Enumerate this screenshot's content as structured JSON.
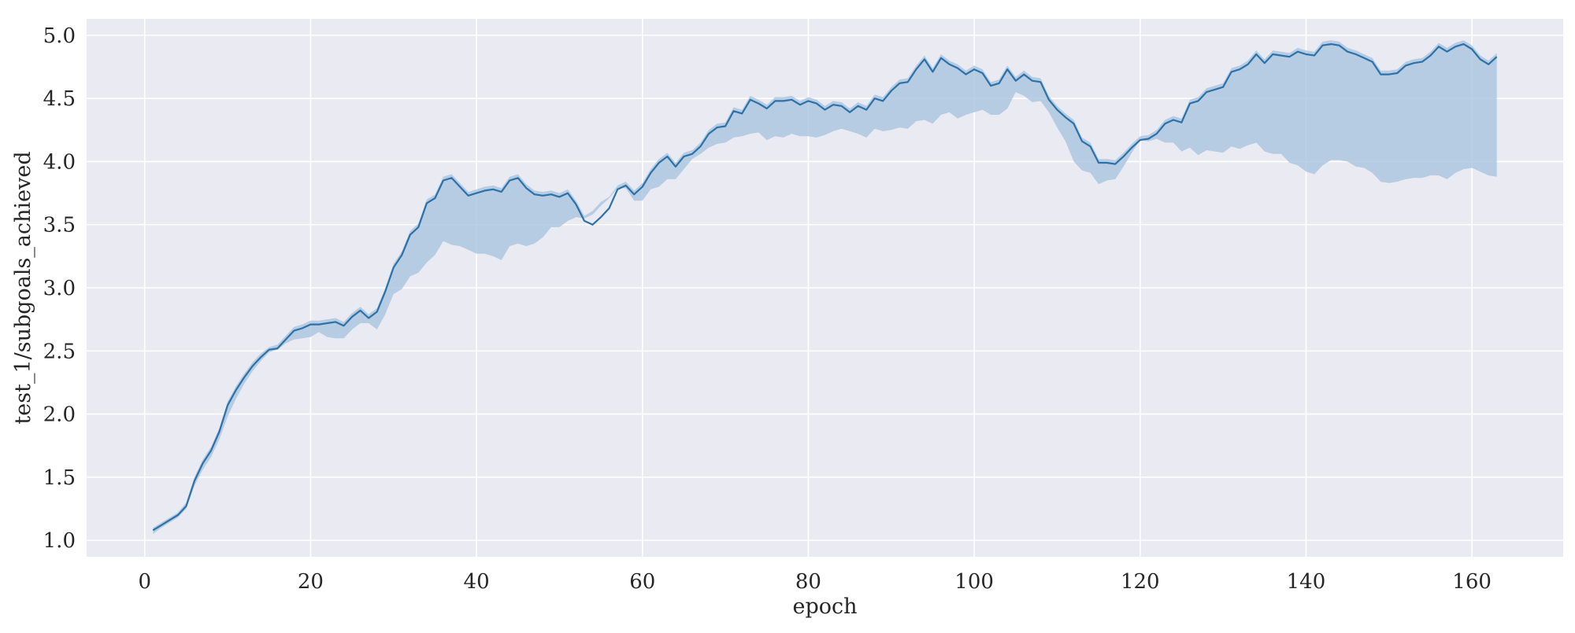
{
  "chart_data": {
    "type": "line",
    "title": "",
    "xlabel": "epoch",
    "ylabel": "test_1/subgoals_achieved",
    "xlim": [
      -7,
      171
    ],
    "ylim": [
      0.87,
      5.13
    ],
    "xticks": [
      0,
      20,
      40,
      60,
      80,
      100,
      120,
      140,
      160
    ],
    "yticks": [
      1.0,
      1.5,
      2.0,
      2.5,
      3.0,
      3.5,
      4.0,
      4.5,
      5.0
    ],
    "xtick_labels": [
      "0",
      "20",
      "40",
      "60",
      "80",
      "100",
      "120",
      "140",
      "160"
    ],
    "ytick_labels": [
      "1.0",
      "1.5",
      "2.0",
      "2.5",
      "3.0",
      "3.5",
      "4.0",
      "4.5",
      "5.0"
    ],
    "grid": true,
    "colors": {
      "background": "#eaeaf2",
      "grid": "#ffffff",
      "line": "#2c72a8",
      "band": "#a7c4df"
    },
    "series": [
      {
        "x": [
          1,
          2,
          3,
          4,
          5,
          6,
          7,
          8,
          9,
          10,
          11,
          12,
          13,
          14,
          15,
          16,
          17,
          18,
          19,
          20,
          21,
          22,
          23,
          24,
          25,
          26,
          27,
          28,
          29,
          30,
          31,
          32,
          33,
          34,
          35,
          36,
          37,
          38,
          39,
          40,
          41,
          42,
          43,
          44,
          45,
          46,
          47,
          48,
          49,
          50,
          51,
          52,
          53,
          54,
          55,
          56,
          57,
          58,
          59,
          60,
          61,
          62,
          63,
          64,
          65,
          66,
          67,
          68,
          69,
          70,
          71,
          72,
          73,
          74,
          75,
          76,
          77,
          78,
          79,
          80,
          81,
          82,
          83,
          84,
          85,
          86,
          87,
          88,
          89,
          90,
          91,
          92,
          93,
          94,
          95,
          96,
          97,
          98,
          99,
          100,
          101,
          102,
          103,
          104,
          105,
          106,
          107,
          108,
          109,
          110,
          111,
          112,
          113,
          114,
          115,
          116,
          117,
          118,
          119,
          120,
          121,
          122,
          123,
          124,
          125,
          126,
          127,
          128,
          129,
          130,
          131,
          132,
          133,
          134,
          135,
          136,
          137,
          138,
          139,
          140,
          141,
          142,
          143,
          144,
          145,
          146,
          147,
          148,
          149,
          150,
          151,
          152,
          153,
          154,
          155,
          156,
          157,
          158,
          159,
          160,
          161,
          162,
          163
        ],
        "y": [
          1.08,
          1.12,
          1.16,
          1.2,
          1.27,
          1.47,
          1.61,
          1.71,
          1.86,
          2.07,
          2.19,
          2.29,
          2.38,
          2.45,
          2.51,
          2.52,
          2.59,
          2.66,
          2.68,
          2.71,
          2.71,
          2.72,
          2.73,
          2.7,
          2.77,
          2.82,
          2.76,
          2.81,
          2.97,
          3.16,
          3.26,
          3.42,
          3.48,
          3.67,
          3.71,
          3.85,
          3.87,
          3.8,
          3.73,
          3.75,
          3.77,
          3.78,
          3.76,
          3.85,
          3.87,
          3.79,
          3.74,
          3.73,
          3.74,
          3.72,
          3.75,
          3.66,
          3.53,
          3.5,
          3.56,
          3.63,
          3.78,
          3.81,
          3.74,
          3.8,
          3.91,
          3.99,
          4.04,
          3.96,
          4.04,
          4.06,
          4.12,
          4.22,
          4.27,
          4.28,
          4.4,
          4.38,
          4.49,
          4.46,
          4.42,
          4.48,
          4.48,
          4.49,
          4.45,
          4.48,
          4.46,
          4.41,
          4.45,
          4.44,
          4.39,
          4.44,
          4.41,
          4.5,
          4.48,
          4.56,
          4.62,
          4.63,
          4.73,
          4.81,
          4.71,
          4.82,
          4.77,
          4.74,
          4.69,
          4.73,
          4.7,
          4.6,
          4.62,
          4.73,
          4.64,
          4.69,
          4.64,
          4.63,
          4.49,
          4.41,
          4.35,
          4.3,
          4.16,
          4.12,
          3.99,
          3.99,
          3.98,
          4.04,
          4.11,
          4.17,
          4.18,
          4.22,
          4.3,
          4.33,
          4.31,
          4.46,
          4.48,
          4.55,
          4.57,
          4.59,
          4.71,
          4.73,
          4.77,
          4.85,
          4.78,
          4.85,
          4.84,
          4.83,
          4.87,
          4.85,
          4.84,
          4.92,
          4.93,
          4.92,
          4.87,
          4.85,
          4.82,
          4.79,
          4.69,
          4.69,
          4.7,
          4.76,
          4.78,
          4.79,
          4.84,
          4.91,
          4.87,
          4.91,
          4.93,
          4.89,
          4.81,
          4.77,
          4.83
        ],
        "y_lower": [
          1.05,
          1.1,
          1.14,
          1.18,
          1.25,
          1.43,
          1.56,
          1.66,
          1.8,
          1.98,
          2.12,
          2.24,
          2.34,
          2.42,
          2.49,
          2.51,
          2.56,
          2.59,
          2.6,
          2.61,
          2.65,
          2.61,
          2.6,
          2.6,
          2.67,
          2.72,
          2.72,
          2.67,
          2.79,
          2.95,
          2.99,
          3.09,
          3.12,
          3.2,
          3.26,
          3.37,
          3.34,
          3.33,
          3.3,
          3.27,
          3.27,
          3.25,
          3.22,
          3.33,
          3.35,
          3.33,
          3.35,
          3.4,
          3.48,
          3.48,
          3.53,
          3.56,
          3.55,
          3.58,
          3.65,
          3.71,
          3.79,
          3.79,
          3.69,
          3.69,
          3.78,
          3.8,
          3.86,
          3.86,
          3.94,
          4.02,
          4.06,
          4.11,
          4.14,
          4.15,
          4.19,
          4.2,
          4.22,
          4.23,
          4.17,
          4.2,
          4.19,
          4.22,
          4.2,
          4.2,
          4.19,
          4.21,
          4.24,
          4.26,
          4.24,
          4.22,
          4.19,
          4.26,
          4.24,
          4.25,
          4.27,
          4.26,
          4.32,
          4.33,
          4.3,
          4.37,
          4.39,
          4.34,
          4.37,
          4.39,
          4.41,
          4.37,
          4.37,
          4.42,
          4.55,
          4.52,
          4.47,
          4.48,
          4.39,
          4.27,
          4.16,
          4.0,
          3.93,
          3.91,
          3.82,
          3.85,
          3.86,
          3.96,
          4.07,
          4.17,
          4.16,
          4.18,
          4.15,
          4.15,
          4.08,
          4.11,
          4.05,
          4.09,
          4.08,
          4.07,
          4.12,
          4.1,
          4.13,
          4.15,
          4.08,
          4.06,
          4.06,
          3.99,
          3.97,
          3.92,
          3.9,
          3.97,
          4.01,
          4.01,
          4.0,
          3.96,
          3.95,
          3.91,
          3.84,
          3.83,
          3.84,
          3.86,
          3.87,
          3.87,
          3.89,
          3.89,
          3.86,
          3.91,
          3.94,
          3.95,
          3.92,
          3.89,
          3.88
        ],
        "y_upper": [
          1.1,
          1.14,
          1.18,
          1.22,
          1.3,
          1.5,
          1.64,
          1.74,
          1.89,
          2.1,
          2.22,
          2.32,
          2.41,
          2.48,
          2.53,
          2.55,
          2.62,
          2.69,
          2.71,
          2.74,
          2.74,
          2.75,
          2.76,
          2.73,
          2.8,
          2.85,
          2.79,
          2.84,
          3.0,
          3.19,
          3.29,
          3.45,
          3.51,
          3.7,
          3.74,
          3.88,
          3.9,
          3.83,
          3.76,
          3.78,
          3.8,
          3.81,
          3.79,
          3.88,
          3.9,
          3.82,
          3.77,
          3.76,
          3.77,
          3.75,
          3.78,
          3.69,
          3.57,
          3.61,
          3.68,
          3.72,
          3.81,
          3.84,
          3.77,
          3.83,
          3.94,
          4.02,
          4.07,
          3.99,
          4.07,
          4.09,
          4.15,
          4.25,
          4.3,
          4.31,
          4.43,
          4.41,
          4.52,
          4.49,
          4.45,
          4.51,
          4.51,
          4.52,
          4.48,
          4.51,
          4.49,
          4.44,
          4.48,
          4.47,
          4.42,
          4.47,
          4.44,
          4.53,
          4.51,
          4.59,
          4.65,
          4.66,
          4.76,
          4.84,
          4.74,
          4.85,
          4.8,
          4.77,
          4.72,
          4.76,
          4.73,
          4.63,
          4.65,
          4.76,
          4.67,
          4.72,
          4.67,
          4.66,
          4.52,
          4.44,
          4.38,
          4.33,
          4.19,
          4.15,
          4.02,
          4.02,
          4.01,
          4.07,
          4.14,
          4.2,
          4.21,
          4.25,
          4.33,
          4.36,
          4.34,
          4.49,
          4.51,
          4.58,
          4.6,
          4.62,
          4.74,
          4.76,
          4.8,
          4.88,
          4.81,
          4.88,
          4.87,
          4.86,
          4.9,
          4.88,
          4.87,
          4.95,
          4.96,
          4.95,
          4.9,
          4.88,
          4.85,
          4.82,
          4.72,
          4.72,
          4.73,
          4.79,
          4.81,
          4.82,
          4.87,
          4.94,
          4.9,
          4.94,
          4.96,
          4.92,
          4.84,
          4.8,
          4.86
        ]
      }
    ]
  }
}
